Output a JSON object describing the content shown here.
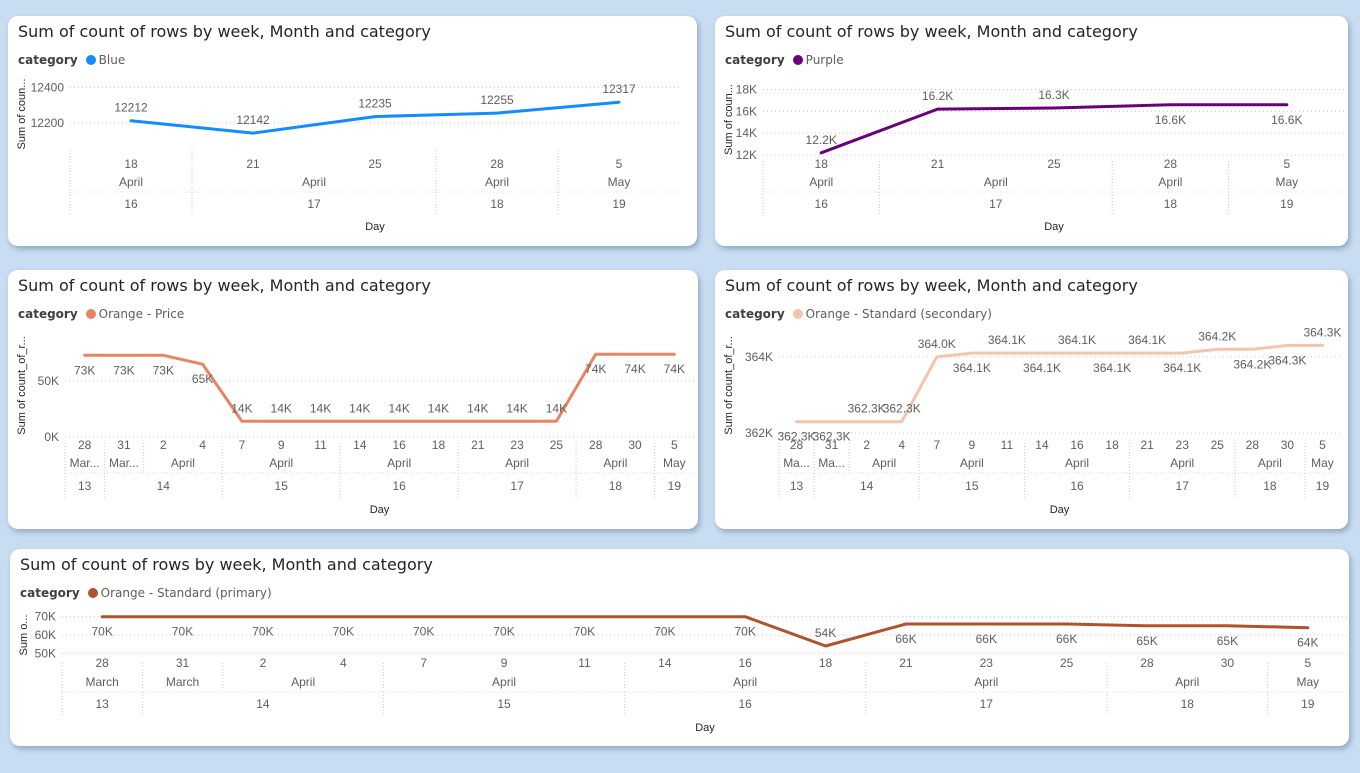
{
  "chart_data": [
    {
      "id": "blue",
      "type": "line",
      "title": "Sum of count of rows by week, Month and category",
      "legend_title": "category",
      "series_name": "Blue",
      "color": "#118DFF",
      "ylabel": "Sum of coun...",
      "xlabel": "Day",
      "ylim": [
        12080,
        12420
      ],
      "yticks": [
        {
          "v": 12200,
          "label": "12200"
        },
        {
          "v": 12400,
          "label": "12400"
        }
      ],
      "x": [
        "2024-04-18",
        "2024-04-21",
        "2024-04-25",
        "2024-04-28",
        "2024-05-05"
      ],
      "values": [
        12212,
        12142,
        12235,
        12255,
        12317
      ],
      "data_labels": [
        "12212",
        "12142",
        "12235",
        "12255",
        "12317"
      ],
      "label_pos": [
        "above",
        "above",
        "above",
        "above",
        "above"
      ],
      "day_labels": [
        "18",
        "21",
        "25",
        "28",
        "5"
      ],
      "month_groups": [
        {
          "label": "April",
          "from": 0,
          "to": 0
        },
        {
          "label": "April",
          "from": 1,
          "to": 2
        },
        {
          "label": "April",
          "from": 3,
          "to": 3
        },
        {
          "label": "May",
          "from": 4,
          "to": 4
        }
      ],
      "week_groups": [
        {
          "label": "16",
          "from": 0,
          "to": 0
        },
        {
          "label": "17",
          "from": 1,
          "to": 2
        },
        {
          "label": "18",
          "from": 3,
          "to": 3
        },
        {
          "label": "19",
          "from": 4,
          "to": 4
        }
      ]
    },
    {
      "id": "purple",
      "type": "line",
      "title": "Sum of count of rows by week, Month and category",
      "legend_title": "category",
      "series_name": "Purple",
      "color": "#6B007B",
      "ylabel": "Sum of coun...",
      "xlabel": "Day",
      "ylim": [
        12000,
        18500
      ],
      "yticks": [
        {
          "v": 12000,
          "label": "12K"
        },
        {
          "v": 14000,
          "label": "14K"
        },
        {
          "v": 16000,
          "label": "16K"
        },
        {
          "v": 18000,
          "label": "18K"
        }
      ],
      "x": [
        "2024-04-18",
        "2024-04-21",
        "2024-04-25",
        "2024-04-28",
        "2024-05-05"
      ],
      "values": [
        12200,
        16200,
        16300,
        16600,
        16600
      ],
      "data_labels": [
        "12.2K",
        "16.2K",
        "16.3K",
        "16.6K",
        "16.6K"
      ],
      "label_pos": [
        "above",
        "above",
        "above",
        "below",
        "below"
      ],
      "day_labels": [
        "18",
        "21",
        "25",
        "28",
        "5"
      ],
      "month_groups": [
        {
          "label": "April",
          "from": 0,
          "to": 0
        },
        {
          "label": "April",
          "from": 1,
          "to": 2
        },
        {
          "label": "April",
          "from": 3,
          "to": 3
        },
        {
          "label": "May",
          "from": 4,
          "to": 4
        }
      ],
      "week_groups": [
        {
          "label": "16",
          "from": 0,
          "to": 0
        },
        {
          "label": "17",
          "from": 1,
          "to": 2
        },
        {
          "label": "18",
          "from": 3,
          "to": 3
        },
        {
          "label": "19",
          "from": 4,
          "to": 4
        }
      ]
    },
    {
      "id": "orange-price",
      "type": "line",
      "title": "Sum of count of rows by week, Month and category",
      "legend_title": "category",
      "series_name": "Orange - Price",
      "color": "#E8845F",
      "ylabel": "Sum of count_of_r...",
      "xlabel": "Day",
      "ylim": [
        0,
        92000
      ],
      "yticks": [
        {
          "v": 0,
          "label": "0K"
        },
        {
          "v": 50000,
          "label": "50K"
        }
      ],
      "x": [
        "2024-03-28",
        "2024-03-31",
        "2024-04-02",
        "2024-04-04",
        "2024-04-07",
        "2024-04-09",
        "2024-04-11",
        "2024-04-14",
        "2024-04-16",
        "2024-04-18",
        "2024-04-21",
        "2024-04-23",
        "2024-04-25",
        "2024-04-28",
        "2024-04-30",
        "2024-05-05"
      ],
      "values": [
        73000,
        73000,
        73000,
        65000,
        14000,
        14000,
        14000,
        14000,
        14000,
        14000,
        14000,
        14000,
        14000,
        74000,
        74000,
        74000
      ],
      "data_labels": [
        "73K",
        "73K",
        "73K",
        "65K",
        "14K",
        "14K",
        "14K",
        "14K",
        "14K",
        "14K",
        "14K",
        "14K",
        "14K",
        "74K",
        "74K",
        "74K"
      ],
      "label_pos": [
        "below",
        "below",
        "below",
        "below",
        "above",
        "above",
        "above",
        "above",
        "above",
        "above",
        "above",
        "above",
        "above",
        "below",
        "below",
        "below"
      ],
      "day_labels": [
        "28",
        "31",
        "2",
        "4",
        "7",
        "9",
        "11",
        "14",
        "16",
        "18",
        "21",
        "23",
        "25",
        "28",
        "30",
        "5"
      ],
      "month_groups": [
        {
          "label": "Mar...",
          "from": 0,
          "to": 0
        },
        {
          "label": "Mar...",
          "from": 1,
          "to": 1
        },
        {
          "label": "April",
          "from": 2,
          "to": 3
        },
        {
          "label": "April",
          "from": 4,
          "to": 6
        },
        {
          "label": "April",
          "from": 7,
          "to": 9
        },
        {
          "label": "April",
          "from": 10,
          "to": 12
        },
        {
          "label": "April",
          "from": 13,
          "to": 14
        },
        {
          "label": "May",
          "from": 15,
          "to": 15
        }
      ],
      "week_groups": [
        {
          "label": "13",
          "from": 0,
          "to": 0
        },
        {
          "label": "14",
          "from": 1,
          "to": 3
        },
        {
          "label": "15",
          "from": 4,
          "to": 6
        },
        {
          "label": "16",
          "from": 7,
          "to": 9
        },
        {
          "label": "17",
          "from": 10,
          "to": 12
        },
        {
          "label": "18",
          "from": 13,
          "to": 14
        },
        {
          "label": "19",
          "from": 15,
          "to": 15
        }
      ]
    },
    {
      "id": "orange-standard-secondary",
      "type": "line",
      "title": "Sum of count of rows by week, Month and category",
      "legend_title": "category",
      "series_name": "Orange - Standard (secondary)",
      "color": "#F5C4AE",
      "ylabel": "Sum of count_of_r...",
      "xlabel": "Day",
      "ylim": [
        361900,
        364600
      ],
      "yticks": [
        {
          "v": 362000,
          "label": "362K"
        },
        {
          "v": 364000,
          "label": "364K"
        }
      ],
      "x": [
        "2024-03-28",
        "2024-03-31",
        "2024-04-02",
        "2024-04-04",
        "2024-04-07",
        "2024-04-09",
        "2024-04-11",
        "2024-04-14",
        "2024-04-16",
        "2024-04-18",
        "2024-04-21",
        "2024-04-23",
        "2024-04-25",
        "2024-04-28",
        "2024-04-30",
        "2024-05-05"
      ],
      "values": [
        362300,
        362300,
        362300,
        362300,
        364000,
        364100,
        364100,
        364100,
        364100,
        364100,
        364100,
        364100,
        364200,
        364200,
        364300,
        364300
      ],
      "data_labels": [
        "362.3K",
        "362.3K",
        "362.3K",
        "362.3K",
        "364.0K",
        "364.1K",
        "364.1K",
        "364.1K",
        "364.1K",
        "364.1K",
        "364.1K",
        "364.1K",
        "364.2K",
        "364.2K",
        "364.3K",
        "364.3K"
      ],
      "label_pos": [
        "below",
        "below",
        "above",
        "above",
        "above",
        "below",
        "above",
        "below",
        "above",
        "below",
        "above",
        "below",
        "above",
        "below",
        "below",
        "above"
      ],
      "day_labels": [
        "28",
        "31",
        "2",
        "4",
        "7",
        "9",
        "11",
        "14",
        "16",
        "18",
        "21",
        "23",
        "25",
        "28",
        "30",
        "5"
      ],
      "month_groups": [
        {
          "label": "Ma...",
          "from": 0,
          "to": 0
        },
        {
          "label": "Ma...",
          "from": 1,
          "to": 1
        },
        {
          "label": "April",
          "from": 2,
          "to": 3
        },
        {
          "label": "April",
          "from": 4,
          "to": 6
        },
        {
          "label": "April",
          "from": 7,
          "to": 9
        },
        {
          "label": "April",
          "from": 10,
          "to": 12
        },
        {
          "label": "April",
          "from": 13,
          "to": 14
        },
        {
          "label": "May",
          "from": 15,
          "to": 15
        }
      ],
      "week_groups": [
        {
          "label": "13",
          "from": 0,
          "to": 0
        },
        {
          "label": "14",
          "from": 1,
          "to": 3
        },
        {
          "label": "15",
          "from": 4,
          "to": 6
        },
        {
          "label": "16",
          "from": 7,
          "to": 9
        },
        {
          "label": "17",
          "from": 10,
          "to": 12
        },
        {
          "label": "18",
          "from": 13,
          "to": 14
        },
        {
          "label": "19",
          "from": 15,
          "to": 15
        }
      ]
    },
    {
      "id": "orange-standard-primary",
      "type": "line",
      "title": "Sum of count of rows by week, Month and category",
      "legend_title": "category",
      "series_name": "Orange - Standard (primary)",
      "color": "#B0522C",
      "ylabel": "Sum o...",
      "xlabel": "Day",
      "ylim": [
        48000,
        72000
      ],
      "yticks": [
        {
          "v": 50000,
          "label": "50K"
        },
        {
          "v": 60000,
          "label": "60K"
        },
        {
          "v": 70000,
          "label": "70K"
        }
      ],
      "x": [
        "2024-03-28",
        "2024-03-31",
        "2024-04-02",
        "2024-04-04",
        "2024-04-07",
        "2024-04-09",
        "2024-04-11",
        "2024-04-14",
        "2024-04-16",
        "2024-04-18",
        "2024-04-21",
        "2024-04-23",
        "2024-04-25",
        "2024-04-28",
        "2024-04-30",
        "2024-05-05"
      ],
      "values": [
        70000,
        70000,
        70000,
        70000,
        70000,
        70000,
        70000,
        70000,
        70000,
        54000,
        66000,
        66000,
        66000,
        65000,
        65000,
        64000
      ],
      "data_labels": [
        "70K",
        "70K",
        "70K",
        "70K",
        "70K",
        "70K",
        "70K",
        "70K",
        "70K",
        "54K",
        "66K",
        "66K",
        "66K",
        "65K",
        "65K",
        "64K"
      ],
      "label_pos": [
        "below",
        "below",
        "below",
        "below",
        "below",
        "below",
        "below",
        "below",
        "below",
        "above",
        "below",
        "below",
        "below",
        "below",
        "below",
        "below"
      ],
      "day_labels": [
        "28",
        "31",
        "2",
        "4",
        "7",
        "9",
        "11",
        "14",
        "16",
        "18",
        "21",
        "23",
        "25",
        "28",
        "30",
        "5"
      ],
      "month_groups": [
        {
          "label": "March",
          "from": 0,
          "to": 0
        },
        {
          "label": "March",
          "from": 1,
          "to": 1
        },
        {
          "label": "April",
          "from": 2,
          "to": 3
        },
        {
          "label": "April",
          "from": 4,
          "to": 6
        },
        {
          "label": "April",
          "from": 7,
          "to": 9
        },
        {
          "label": "April",
          "from": 10,
          "to": 12
        },
        {
          "label": "April",
          "from": 13,
          "to": 14
        },
        {
          "label": "May",
          "from": 15,
          "to": 15
        }
      ],
      "week_groups": [
        {
          "label": "13",
          "from": 0,
          "to": 0
        },
        {
          "label": "14",
          "from": 1,
          "to": 3
        },
        {
          "label": "15",
          "from": 4,
          "to": 6
        },
        {
          "label": "16",
          "from": 7,
          "to": 9
        },
        {
          "label": "17",
          "from": 10,
          "to": 12
        },
        {
          "label": "18",
          "from": 13,
          "to": 14
        },
        {
          "label": "19",
          "from": 15,
          "to": 15
        }
      ]
    }
  ]
}
